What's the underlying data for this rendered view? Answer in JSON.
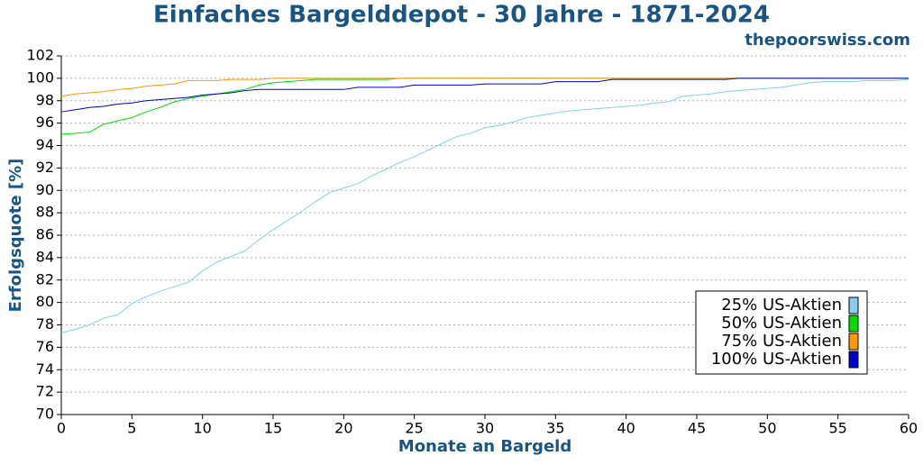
{
  "chart_data": {
    "type": "line",
    "title": "Einfaches Bargelddepot - 30 Jahre - 1871-2024",
    "subtitle": "thepoorswiss.com",
    "x_label": "Monate an Bargeld",
    "y_label": "Erfolgsquote [%]",
    "x": [
      0,
      1,
      2,
      3,
      4,
      5,
      6,
      7,
      8,
      9,
      10,
      11,
      12,
      13,
      14,
      15,
      16,
      17,
      18,
      19,
      20,
      21,
      22,
      23,
      24,
      25,
      26,
      27,
      28,
      29,
      30,
      31,
      32,
      33,
      34,
      35,
      36,
      37,
      38,
      39,
      40,
      41,
      42,
      43,
      44,
      45,
      46,
      47,
      48,
      49,
      50,
      51,
      52,
      53,
      54,
      55,
      56,
      57,
      58,
      59,
      60
    ],
    "series": [
      {
        "name": "25% US-Aktien",
        "color": "#87ceeb",
        "values": [
          77.3,
          77.6,
          78.0,
          78.6,
          78.9,
          79.9,
          80.5,
          81.0,
          81.4,
          81.8,
          82.8,
          83.6,
          84.1,
          84.6,
          85.6,
          86.5,
          87.3,
          88.1,
          89.0,
          89.8,
          90.2,
          90.6,
          91.3,
          91.9,
          92.5,
          93.0,
          93.6,
          94.2,
          94.8,
          95.1,
          95.6,
          95.8,
          96.1,
          96.5,
          96.7,
          96.9,
          97.1,
          97.2,
          97.3,
          97.4,
          97.5,
          97.6,
          97.8,
          97.9,
          98.4,
          98.5,
          98.6,
          98.8,
          98.9,
          99.0,
          99.1,
          99.2,
          99.4,
          99.6,
          99.7,
          99.7,
          99.7,
          99.8,
          99.8,
          99.8,
          99.9
        ]
      },
      {
        "name": "50% US-Aktien",
        "color": "#00dd00",
        "values": [
          95.0,
          95.1,
          95.2,
          95.9,
          96.2,
          96.5,
          97.0,
          97.4,
          97.9,
          98.2,
          98.4,
          98.6,
          98.8,
          99.0,
          99.4,
          99.6,
          99.7,
          99.8,
          99.9,
          99.9,
          99.9,
          99.9,
          99.9,
          99.9,
          100,
          100,
          100,
          100,
          100,
          100,
          100,
          100,
          100,
          100,
          100,
          100,
          100,
          100,
          100,
          100,
          100,
          100,
          100,
          100,
          100,
          100,
          100,
          100,
          100,
          100,
          100,
          100,
          100,
          100,
          100,
          100,
          100,
          100,
          100,
          100,
          100
        ]
      },
      {
        "name": "75% US-Aktien",
        "color": "#ff9900",
        "values": [
          98.4,
          98.6,
          98.7,
          98.8,
          99.0,
          99.1,
          99.3,
          99.4,
          99.5,
          99.8,
          99.8,
          99.8,
          99.9,
          99.9,
          99.9,
          100,
          100,
          100,
          100,
          100,
          100,
          100,
          100,
          100,
          100,
          100,
          100,
          100,
          100,
          100,
          100,
          100,
          100,
          100,
          100,
          100,
          100,
          100,
          100,
          100,
          100,
          100,
          100,
          100,
          100,
          100,
          100,
          100,
          100,
          100,
          100,
          100,
          100,
          100,
          100,
          100,
          100,
          100,
          100,
          100,
          100
        ]
      },
      {
        "name": "100% US-Aktien",
        "color": "#0000cc",
        "values": [
          97.0,
          97.2,
          97.4,
          97.5,
          97.7,
          97.8,
          98.0,
          98.1,
          98.2,
          98.3,
          98.5,
          98.6,
          98.7,
          98.9,
          99.0,
          99.0,
          99.0,
          99.0,
          99.0,
          99.0,
          99.0,
          99.2,
          99.2,
          99.2,
          99.2,
          99.4,
          99.4,
          99.4,
          99.4,
          99.4,
          99.5,
          99.5,
          99.5,
          99.5,
          99.5,
          99.7,
          99.7,
          99.7,
          99.7,
          99.9,
          99.9,
          99.9,
          99.9,
          99.9,
          99.9,
          99.9,
          99.9,
          99.9,
          100,
          100,
          100,
          100,
          100,
          100,
          100,
          100,
          100,
          100,
          100,
          100,
          100
        ]
      }
    ],
    "xlim": [
      0,
      60
    ],
    "ylim": [
      70,
      102
    ],
    "xticks": [
      0,
      5,
      10,
      15,
      20,
      25,
      30,
      35,
      40,
      45,
      50,
      55,
      60
    ],
    "yticks": [
      70,
      72,
      74,
      76,
      78,
      80,
      82,
      84,
      86,
      88,
      90,
      92,
      94,
      96,
      98,
      100,
      102
    ],
    "grid": true,
    "legend": "lower right"
  }
}
